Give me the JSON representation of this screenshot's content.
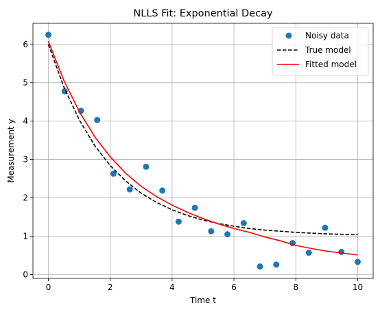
{
  "chart_data": {
    "type": "scatter",
    "title": "NLLS Fit: Exponential Decay",
    "xlabel": "Time t",
    "ylabel": "Measurement y",
    "xlim": [
      -0.5,
      10.5
    ],
    "ylim": [
      -0.1,
      6.55
    ],
    "xticks": [
      0,
      2,
      4,
      6,
      8,
      10
    ],
    "yticks": [
      0,
      1,
      2,
      3,
      4,
      5,
      6
    ],
    "grid": true,
    "legend_position": "top-right",
    "series": [
      {
        "name": "Noisy data",
        "kind": "scatter",
        "color": "#1f77b4",
        "x": [
          0,
          0.526,
          1.053,
          1.579,
          2.105,
          2.632,
          3.158,
          3.684,
          4.211,
          4.737,
          5.263,
          5.789,
          6.316,
          6.842,
          7.368,
          7.895,
          8.421,
          8.947,
          9.474,
          10
        ],
        "y": [
          6.25,
          4.78,
          4.27,
          4.03,
          2.63,
          2.22,
          2.81,
          2.19,
          1.38,
          1.74,
          1.13,
          1.05,
          1.34,
          0.21,
          0.26,
          0.82,
          0.57,
          1.22,
          0.59,
          0.33
        ]
      },
      {
        "name": "True model",
        "kind": "line",
        "style": "dashed",
        "color": "#000000",
        "x": [
          0,
          0.5,
          1,
          1.5,
          2,
          2.5,
          3,
          3.5,
          4,
          4.5,
          5,
          5.5,
          6,
          6.5,
          7,
          7.5,
          8,
          8.5,
          9,
          9.5,
          10
        ],
        "y": [
          6.0,
          4.89,
          4.03,
          3.36,
          2.84,
          2.44,
          2.12,
          1.88,
          1.69,
          1.54,
          1.42,
          1.33,
          1.26,
          1.2,
          1.16,
          1.13,
          1.1,
          1.08,
          1.06,
          1.05,
          1.04
        ]
      },
      {
        "name": "Fitted model",
        "kind": "line",
        "style": "solid",
        "color": "#ff0000",
        "x": [
          0,
          0.5,
          1,
          1.5,
          2,
          2.5,
          3,
          3.5,
          4,
          4.5,
          5,
          5.5,
          6,
          6.5,
          7,
          7.5,
          8,
          8.5,
          9,
          9.5,
          10
        ],
        "y": [
          6.08,
          5.06,
          4.25,
          3.59,
          3.07,
          2.64,
          2.3,
          2.03,
          1.81,
          1.62,
          1.46,
          1.32,
          1.2,
          1.1,
          0.98,
          0.88,
          0.76,
          0.68,
          0.61,
          0.56,
          0.51
        ]
      }
    ]
  }
}
